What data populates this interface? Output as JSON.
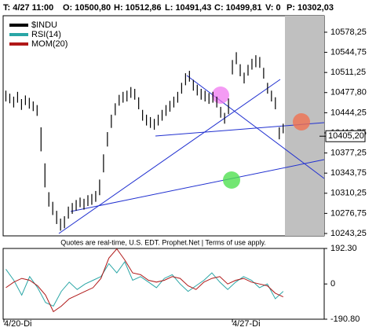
{
  "chart_data": [
    {
      "type": "hilo",
      "quote_bar": {
        "time": "T: 4/27 11:00",
        "open": "O: 10500,80",
        "high": "H: 10512,86",
        "low": "L: 10491,43",
        "close": "C: 10499,81",
        "volume": "V: 0",
        "prev": "P: 10302,03"
      },
      "footer": "Quotes are real-time, U.S. EDT. Prophet.Net | Terms of use apply.",
      "legend": [
        {
          "name": "$INDU",
          "color": "#000000"
        },
        {
          "name": "RSI(14)",
          "color": "#2aa6a6"
        },
        {
          "name": "MOM(20)",
          "color": "#b01818"
        }
      ],
      "last_price": {
        "value": 10405.2,
        "label": "10405,20"
      },
      "xlim": [
        0,
        82
      ],
      "xticks": [
        {
          "value": 0,
          "label": "4/20-Di"
        },
        {
          "value": 58.5,
          "label": "4/27-Di"
        }
      ],
      "ylim": [
        10239.3,
        10605.7
      ],
      "yticks": [
        {
          "value": 10578.25,
          "label": "10578,25"
        },
        {
          "value": 10544.75,
          "label": "10544,75"
        },
        {
          "value": 10511.25,
          "label": "10511,25"
        },
        {
          "value": 10477.8,
          "label": "10477,80"
        },
        {
          "value": 10444.25,
          "label": "10444,25"
        },
        {
          "value": 10410.75,
          "label": "10410,75"
        },
        {
          "value": 10377.25,
          "label": "10377,25"
        },
        {
          "value": 10343.75,
          "label": "10343,75"
        },
        {
          "value": 10310.25,
          "label": "10310,25"
        },
        {
          "value": 10276.75,
          "label": "10276,75"
        },
        {
          "value": 10243.25,
          "label": "10243,25"
        }
      ],
      "series": [
        {
          "name": "$INDU",
          "color": "#000000",
          "high": [
            10481,
            10476,
            10471,
            10479,
            10467,
            10473,
            10469,
            10463,
            10457,
            10420,
            10360,
            10312,
            10296,
            10281,
            10268,
            10272,
            10288,
            10294,
            10299,
            10303,
            10301,
            10307,
            10309,
            10314,
            10333,
            10375,
            10412,
            10441,
            10460,
            10474,
            10479,
            10481,
            10487,
            10484,
            10470,
            10449,
            10441,
            10437,
            10434,
            10441,
            10449,
            10457,
            10464,
            10471,
            10479,
            10494,
            10510,
            10514,
            10499,
            10491,
            10484,
            10481,
            10477,
            10479,
            10471,
            10454,
            10444,
            10468,
            10532,
            10545,
            10525,
            10511,
            10524,
            10534,
            10540,
            10537,
            10519,
            10494,
            10481,
            10470,
            10420,
            10426
          ],
          "low": [
            10463,
            10460,
            10453,
            10461,
            10449,
            10457,
            10451,
            10447,
            10439,
            10380,
            10320,
            10288,
            10274,
            10259,
            10248,
            10252,
            10268,
            10276,
            10281,
            10287,
            10283,
            10289,
            10291,
            10296,
            10307,
            10345,
            10388,
            10419,
            10440,
            10456,
            10461,
            10463,
            10469,
            10466,
            10450,
            10431,
            10423,
            10419,
            10416,
            10423,
            10431,
            10439,
            10446,
            10453,
            10461,
            10476,
            10490,
            10496,
            10481,
            10473,
            10466,
            10463,
            10459,
            10461,
            10453,
            10436,
            10426,
            10442,
            10508,
            10525,
            10505,
            10493,
            10506,
            10516,
            10520,
            10519,
            10501,
            10476,
            10463,
            10450,
            10400,
            10410
          ]
        }
      ]
    },
    {
      "type": "line",
      "ylim": [
        -190.8,
        192.3
      ],
      "yticks": [
        {
          "value": 192.3,
          "label": "192.30"
        },
        0,
        {
          "value": -190.8,
          "label": "-190.80"
        }
      ],
      "series": [
        {
          "name": "RSI(14)",
          "color": "#2aa6a6",
          "values": [
            80,
            20,
            -60,
            40,
            -20,
            -100,
            -120,
            -40,
            10,
            -30,
            0,
            20,
            40,
            110,
            60,
            120,
            20,
            40,
            10,
            -20,
            30,
            50,
            0,
            -40,
            -10,
            20,
            60,
            10,
            -30,
            10,
            40,
            20,
            -20,
            0,
            -80,
            -40
          ]
        },
        {
          "name": "MOM(20)",
          "color": "#b01818",
          "values": [
            -20,
            10,
            30,
            20,
            -10,
            -60,
            -150,
            -120,
            -80,
            -60,
            -40,
            -20,
            30,
            140,
            190,
            130,
            60,
            50,
            20,
            10,
            20,
            40,
            30,
            -10,
            -30,
            10,
            30,
            40,
            0,
            20,
            30,
            10,
            0,
            -10,
            -50,
            -70
          ]
        }
      ]
    }
  ]
}
